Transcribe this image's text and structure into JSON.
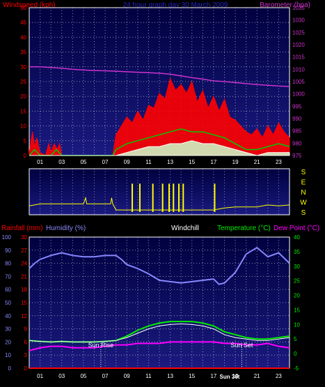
{
  "header": {
    "left_label": "Windspeed (kph)",
    "title": "24 hour graph day 30 March 2009",
    "right_label": "Barometer (hpa)"
  },
  "colors": {
    "wind_axis": "#ff0000",
    "baro": "#cc33cc",
    "title": "#2222cc",
    "gust": "#ff0000",
    "avg": "#00cc00",
    "min": "#ffffff",
    "light": "#ccffcc",
    "direction": "#ffff00",
    "humidity": "#8888ff",
    "temperature": "#00ee00",
    "dewpoint": "#ff00ff",
    "windchill": "#ffffff",
    "rain": "#ff0000",
    "plot_top": "#000040",
    "plot_bottom": "#1a1a80"
  },
  "footer": {
    "rainfall_label": "Rainfall (mm)",
    "humidity_label": "Humidity (%)",
    "windchill_label": "Windchill",
    "temperature_label": "Temperature (°C)",
    "dewpoint_label": "Dew Point (°C)",
    "sun_rise_label": "Sun Rise",
    "sun_set_label": "Sun Set",
    "sun_set_time": "Sun 36t"
  },
  "chart_data": [
    {
      "type": "line",
      "name": "wind-barometer",
      "x_ticks": [
        "01",
        "03",
        "05",
        "07",
        "09",
        "11",
        "13",
        "15",
        "17",
        "19",
        "21",
        "23"
      ],
      "x_range": [
        0,
        24
      ],
      "y_left": {
        "ticks": [
          0,
          5,
          10,
          15,
          20,
          25,
          30,
          35,
          40,
          45,
          50
        ],
        "range": [
          0,
          50
        ]
      },
      "y_right": {
        "ticks": [
          975,
          980,
          985,
          990,
          995,
          1000,
          1005,
          1010,
          1015,
          1020,
          1025,
          1030,
          1035
        ],
        "range": [
          975,
          1035
        ]
      },
      "series": [
        {
          "name": "Barometer",
          "axis": "right",
          "x": [
            0,
            1,
            2,
            3,
            4,
            5,
            6,
            7,
            8,
            9,
            10,
            11,
            12,
            13,
            14,
            15,
            16,
            17,
            18,
            19,
            20,
            21,
            22,
            23,
            24
          ],
          "y": [
            1011,
            1011,
            1010.7,
            1010.4,
            1010,
            1009.7,
            1009.5,
            1009.4,
            1009.2,
            1009,
            1008.8,
            1008.6,
            1008.4,
            1008,
            1007.3,
            1006.6,
            1006,
            1005.3,
            1005,
            1004.6,
            1004.2,
            1003.8,
            1003.5,
            1003.2,
            1003
          ]
        },
        {
          "name": "Gust",
          "axis": "left",
          "x": [
            0,
            0.3,
            0.5,
            0.7,
            1,
            1.5,
            1.8,
            2,
            2.3,
            2.6,
            2.8,
            3,
            7.7,
            8,
            8.5,
            9,
            9.5,
            10,
            10.5,
            11,
            11.5,
            12,
            12.5,
            13,
            13.5,
            14,
            14.5,
            15,
            15.5,
            16,
            16.5,
            17,
            17.5,
            18,
            18.5,
            19,
            19.5,
            20,
            20.5,
            21,
            21.5,
            22,
            22.5,
            23,
            23.5,
            24
          ],
          "y": [
            1,
            8,
            3,
            6,
            1,
            0,
            4,
            1,
            4,
            2,
            4,
            0,
            0,
            7,
            10,
            13,
            11,
            15,
            12,
            17,
            16,
            21,
            19,
            26,
            22,
            24,
            21,
            25,
            18,
            22,
            16,
            20,
            15,
            19,
            13,
            12,
            10,
            8,
            7,
            9,
            6,
            10,
            7,
            11,
            8,
            6
          ]
        },
        {
          "name": "Average",
          "axis": "left",
          "x": [
            0,
            0.5,
            1,
            2,
            2.5,
            3,
            7.7,
            8,
            9,
            10,
            11,
            12,
            13,
            14,
            15,
            16,
            17,
            18,
            19,
            20,
            21,
            22,
            23,
            24
          ],
          "y": [
            0,
            2,
            0,
            0,
            2,
            0,
            0,
            2,
            4,
            5,
            6,
            7,
            8,
            9,
            8,
            8,
            7,
            6,
            4,
            2,
            2,
            3,
            4,
            3
          ]
        },
        {
          "name": "Minimum",
          "axis": "left",
          "x": [
            0,
            3,
            7.7,
            8,
            9,
            10,
            11,
            12,
            13,
            14,
            15,
            16,
            17,
            18,
            19,
            20,
            21,
            22,
            23,
            24
          ],
          "y": [
            0,
            0,
            0,
            0,
            1,
            2,
            3,
            3,
            4,
            4,
            5,
            4,
            4,
            3,
            2,
            1,
            0,
            1,
            1,
            1
          ]
        }
      ]
    },
    {
      "type": "line",
      "name": "wind-direction",
      "x_range": [
        0,
        24
      ],
      "y_ticks": [
        "S",
        "E",
        "N",
        "W",
        "S"
      ],
      "series": [
        {
          "name": "Direction",
          "x": [
            0,
            1,
            2,
            3,
            4,
            5,
            5.2,
            5.3,
            6,
            7,
            7.5,
            7.6,
            7.7,
            8,
            9,
            10,
            11,
            12,
            13,
            14,
            15,
            16,
            17,
            18,
            19,
            20,
            21,
            22,
            23,
            24
          ],
          "y": [
            3.4,
            3.2,
            3.2,
            3.2,
            3.2,
            3.2,
            2.6,
            3.2,
            3.2,
            3.2,
            3.2,
            2.6,
            3.2,
            3.8,
            3.8,
            3.8,
            3.8,
            3.8,
            3.8,
            3.8,
            3.8,
            3.8,
            3.8,
            3.6,
            3.5,
            3.5,
            3.5,
            3.3,
            3.4,
            3.3
          ]
        }
      ]
    },
    {
      "type": "line",
      "name": "temperature-humidity",
      "x_ticks": [
        "01",
        "03",
        "05",
        "07",
        "09",
        "11",
        "13",
        "15",
        "17",
        "19",
        "21",
        "23"
      ],
      "x_range": [
        0,
        24
      ],
      "y_left_humidity": {
        "ticks": [
          0,
          10,
          20,
          30,
          40,
          50,
          60,
          70,
          80,
          90,
          100
        ],
        "range": [
          0,
          100
        ]
      },
      "y_left_rain": {
        "ticks": [
          0,
          3,
          6,
          9,
          12,
          15,
          18,
          21,
          24,
          27,
          30
        ],
        "range": [
          0,
          30
        ]
      },
      "y_right_temp": {
        "ticks": [
          -5,
          0,
          5,
          10,
          15,
          20,
          25,
          30,
          35,
          40
        ],
        "range": [
          -5,
          40
        ]
      },
      "series": [
        {
          "name": "Humidity",
          "axis": "humidity",
          "x": [
            0,
            0.5,
            1,
            2,
            3,
            4,
            5,
            6,
            7,
            8,
            8.5,
            9,
            10,
            11,
            12,
            13,
            14,
            15,
            16,
            17,
            17.5,
            18,
            19,
            20,
            21,
            22,
            23,
            24
          ],
          "y": [
            76,
            80,
            83,
            86,
            88,
            86,
            85,
            85,
            86,
            86,
            83,
            79,
            76,
            72,
            67,
            66,
            65,
            66,
            67,
            68,
            64,
            65,
            73,
            87,
            92,
            85,
            88,
            80
          ]
        },
        {
          "name": "Temperature",
          "axis": "temp",
          "x": [
            0,
            1,
            2,
            3,
            4,
            5,
            6,
            7,
            8,
            9,
            10,
            11,
            12,
            13,
            14,
            15,
            16,
            17,
            18,
            19,
            20,
            21,
            22,
            23,
            24
          ],
          "y": [
            4.5,
            4.2,
            4.0,
            4.2,
            4.0,
            4.0,
            4.0,
            4.2,
            4.5,
            6,
            8,
            9.5,
            10.5,
            11,
            11,
            11,
            10.5,
            9.5,
            7.5,
            6.5,
            5.5,
            5,
            5,
            5.5,
            6
          ]
        },
        {
          "name": "Windchill",
          "axis": "temp",
          "x": [
            0,
            1,
            2,
            3,
            4,
            5,
            6,
            7,
            8,
            9,
            10,
            11,
            12,
            13,
            14,
            15,
            16,
            17,
            18,
            19,
            20,
            21,
            22,
            23,
            24
          ],
          "y": [
            4.5,
            4.2,
            4.0,
            4.2,
            4.0,
            4.0,
            4.0,
            4.2,
            4.5,
            5.5,
            7,
            8.5,
            9.5,
            10,
            10.2,
            10,
            9.5,
            8.5,
            6.5,
            5.5,
            5,
            4.5,
            4.5,
            5,
            5.5
          ]
        },
        {
          "name": "Dew Point",
          "axis": "temp",
          "x": [
            0,
            1,
            2,
            3,
            4,
            5,
            6,
            7,
            8,
            9,
            10,
            11,
            12,
            13,
            14,
            15,
            16,
            17,
            18,
            19,
            20,
            21,
            22,
            23,
            24
          ],
          "y": [
            1,
            2,
            2.5,
            2.5,
            2,
            2,
            2,
            2.5,
            3,
            3,
            3.5,
            3.5,
            3.5,
            4,
            4,
            4,
            4,
            4,
            3.5,
            3.5,
            3,
            3,
            3.5,
            2.5,
            2
          ]
        },
        {
          "name": "Rainfall",
          "axis": "rain",
          "x": [
            0,
            24
          ],
          "y": [
            0,
            0
          ]
        }
      ],
      "annotations": {
        "sun_rise_hour": 6.6,
        "sun_set_hour": 19.6
      }
    }
  ]
}
